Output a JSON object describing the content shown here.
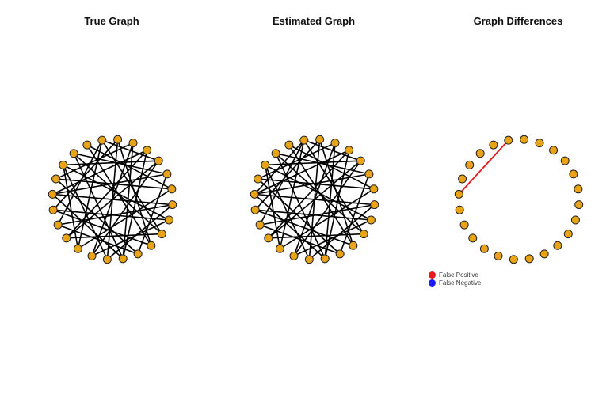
{
  "panels": [
    {
      "title": "True Graph"
    },
    {
      "title": "Estimated Graph"
    },
    {
      "title": "Graph Differences"
    }
  ],
  "graph": {
    "node_count": 24,
    "node_fill": "#e8a317",
    "node_stroke": "#222222",
    "edge_color": "#000000",
    "true_edges": [
      [
        0,
        17
      ],
      [
        0,
        9
      ],
      [
        1,
        18
      ],
      [
        1,
        13
      ],
      [
        2,
        14
      ],
      [
        2,
        20
      ],
      [
        3,
        12
      ],
      [
        3,
        19
      ],
      [
        4,
        16
      ],
      [
        4,
        21
      ],
      [
        5,
        11
      ],
      [
        5,
        22
      ],
      [
        6,
        15
      ],
      [
        6,
        23
      ],
      [
        7,
        13
      ],
      [
        7,
        19
      ],
      [
        8,
        14
      ],
      [
        8,
        21
      ],
      [
        9,
        16
      ],
      [
        10,
        18
      ],
      [
        10,
        23
      ],
      [
        11,
        20
      ],
      [
        12,
        22
      ],
      [
        0,
        15
      ],
      [
        2,
        12
      ],
      [
        5,
        19
      ],
      [
        7,
        17
      ],
      [
        9,
        22
      ],
      [
        11,
        17
      ],
      [
        13,
        21
      ],
      [
        1,
        10
      ],
      [
        3,
        16
      ],
      [
        4,
        14
      ],
      [
        6,
        20
      ],
      [
        15,
        21
      ],
      [
        8,
        18
      ],
      [
        12,
        19
      ],
      [
        0,
        4
      ]
    ],
    "estimated_edges": [
      [
        0,
        17
      ],
      [
        0,
        9
      ],
      [
        1,
        18
      ],
      [
        1,
        13
      ],
      [
        2,
        14
      ],
      [
        2,
        20
      ],
      [
        3,
        12
      ],
      [
        3,
        19
      ],
      [
        4,
        16
      ],
      [
        4,
        21
      ],
      [
        5,
        11
      ],
      [
        5,
        22
      ],
      [
        6,
        15
      ],
      [
        6,
        23
      ],
      [
        7,
        13
      ],
      [
        7,
        19
      ],
      [
        8,
        14
      ],
      [
        8,
        21
      ],
      [
        9,
        16
      ],
      [
        10,
        18
      ],
      [
        10,
        23
      ],
      [
        11,
        20
      ],
      [
        12,
        22
      ],
      [
        0,
        15
      ],
      [
        2,
        12
      ],
      [
        5,
        19
      ],
      [
        7,
        17
      ],
      [
        9,
        22
      ],
      [
        11,
        17
      ],
      [
        13,
        21
      ],
      [
        1,
        10
      ],
      [
        3,
        16
      ],
      [
        4,
        14
      ],
      [
        6,
        20
      ],
      [
        15,
        21
      ],
      [
        8,
        18
      ],
      [
        12,
        19
      ],
      [
        0,
        4
      ],
      [
        0,
        19
      ]
    ],
    "false_positive_edges": [
      [
        0,
        19
      ]
    ],
    "false_negative_edges": []
  },
  "legend": {
    "items": [
      {
        "label": "False Positive",
        "color": "#e41a1c"
      },
      {
        "label": "False Negative",
        "color": "#1a1aff"
      }
    ]
  }
}
